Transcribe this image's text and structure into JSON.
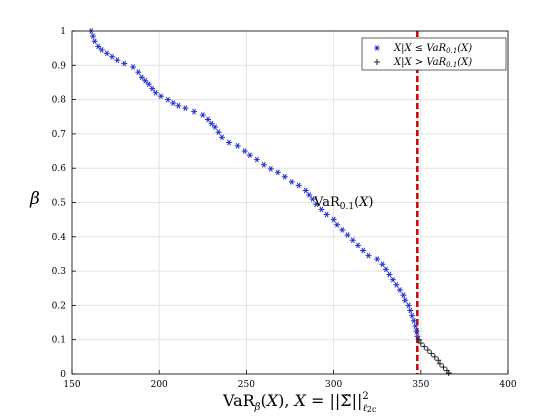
{
  "chart_data": {
    "type": "scatter",
    "xlabel": "VaR_β(X), X = ||Σ̃||²_ℓ2c",
    "ylabel": "β",
    "xlim": [
      150,
      400
    ],
    "ylim": [
      0,
      1
    ],
    "x_ticks": [
      "150",
      "200",
      "250",
      "300",
      "350",
      "400"
    ],
    "y_ticks": [
      "0",
      "0.1",
      "0.2",
      "0.3",
      "0.4",
      "0.5",
      "0.6",
      "0.7",
      "0.8",
      "0.9",
      "1"
    ],
    "grid": true,
    "legend_position": "top-right",
    "threshold": {
      "x": 348,
      "color": "#cc0000",
      "style": "dashed",
      "label": "VaR_0.1(X)"
    },
    "series": [
      {
        "name": "X|X ≤ VaR_0.1(X)",
        "marker": "asterisk",
        "color": "#1f2fd0",
        "points": [
          [
            161,
            1.0
          ],
          [
            162,
            0.985
          ],
          [
            163,
            0.97
          ],
          [
            165,
            0.955
          ],
          [
            167,
            0.945
          ],
          [
            170,
            0.935
          ],
          [
            173,
            0.925
          ],
          [
            176,
            0.915
          ],
          [
            180,
            0.905
          ],
          [
            185,
            0.895
          ],
          [
            188,
            0.88
          ],
          [
            190,
            0.865
          ],
          [
            192,
            0.855
          ],
          [
            194,
            0.845
          ],
          [
            196,
            0.832
          ],
          [
            198,
            0.82
          ],
          [
            201,
            0.81
          ],
          [
            205,
            0.8
          ],
          [
            208,
            0.79
          ],
          [
            211,
            0.782
          ],
          [
            215,
            0.775
          ],
          [
            220,
            0.765
          ],
          [
            225,
            0.755
          ],
          [
            228,
            0.742
          ],
          [
            230,
            0.73
          ],
          [
            232,
            0.72
          ],
          [
            234,
            0.705
          ],
          [
            236,
            0.69
          ],
          [
            240,
            0.675
          ],
          [
            245,
            0.665
          ],
          [
            249,
            0.65
          ],
          [
            252,
            0.638
          ],
          [
            256,
            0.625
          ],
          [
            260,
            0.61
          ],
          [
            264,
            0.598
          ],
          [
            268,
            0.588
          ],
          [
            272,
            0.575
          ],
          [
            276,
            0.56
          ],
          [
            280,
            0.55
          ],
          [
            284,
            0.535
          ],
          [
            286,
            0.522
          ],
          [
            288,
            0.51
          ],
          [
            290,
            0.495
          ],
          [
            293,
            0.48
          ],
          [
            296,
            0.465
          ],
          [
            300,
            0.45
          ],
          [
            302,
            0.435
          ],
          [
            305,
            0.42
          ],
          [
            308,
            0.405
          ],
          [
            311,
            0.39
          ],
          [
            314,
            0.375
          ],
          [
            317,
            0.36
          ],
          [
            320,
            0.345
          ],
          [
            325,
            0.335
          ],
          [
            328,
            0.32
          ],
          [
            330,
            0.305
          ],
          [
            332,
            0.29
          ],
          [
            334,
            0.275
          ],
          [
            336,
            0.26
          ],
          [
            338,
            0.245
          ],
          [
            340,
            0.23
          ],
          [
            341,
            0.215
          ],
          [
            343,
            0.2
          ],
          [
            344,
            0.185
          ],
          [
            345,
            0.17
          ],
          [
            346,
            0.155
          ],
          [
            347,
            0.14
          ],
          [
            347.5,
            0.125
          ],
          [
            348,
            0.11
          ]
        ]
      },
      {
        "name": "X|X > VaR_0.1(X)",
        "marker": "plus",
        "color": "#222222",
        "points": [
          [
            349,
            0.1
          ],
          [
            350,
            0.09
          ],
          [
            352,
            0.08
          ],
          [
            354,
            0.07
          ],
          [
            356,
            0.06
          ],
          [
            358,
            0.05
          ],
          [
            360,
            0.04
          ],
          [
            361,
            0.03
          ],
          [
            363,
            0.02
          ],
          [
            365,
            0.01
          ],
          [
            366,
            0.003
          ]
        ]
      }
    ]
  }
}
